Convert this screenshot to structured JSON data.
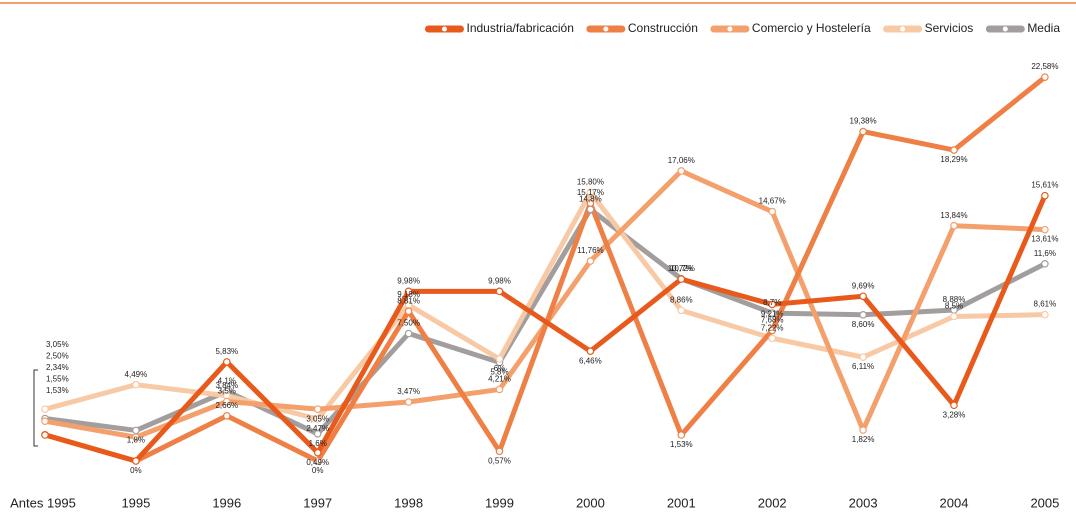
{
  "chart_data": {
    "type": "line",
    "categories": [
      "Antes 1995",
      "1995",
      "1996",
      "1997",
      "1998",
      "1999",
      "2000",
      "2001",
      "2002",
      "2003",
      "2004",
      "2005"
    ],
    "ylim": [
      0,
      25
    ],
    "legend": "top-right",
    "series": [
      {
        "name": "Industria/fabricación",
        "color": "#e85a1c",
        "values": [
          1.53,
          0,
          5.83,
          0.49,
          9.98,
          9.98,
          6.46,
          10.7,
          9.21,
          9.69,
          3.28,
          15.61
        ],
        "value_labels": [
          "1,53%",
          "0%",
          "5,83%",
          "0,49%",
          "9,98%",
          "9,98%",
          "6,46%",
          "10,7%",
          "9,21%",
          "9,69%",
          "3,28%",
          "15,61%"
        ]
      },
      {
        "name": "Construcción",
        "color": "#ee7f45",
        "values": [
          1.55,
          0,
          2.66,
          0,
          8.81,
          0.57,
          15.17,
          1.53,
          7.68,
          19.38,
          18.29,
          22.58
        ],
        "value_labels": [
          "1,55%",
          null,
          "2,66%",
          "0%",
          "8,81%",
          "0,57%",
          "15,17%",
          "1,53%",
          "7,68%",
          "19,38%",
          "18,29%",
          "22,58%"
        ]
      },
      {
        "name": "Comercio y Hostelería",
        "color": "#f3a06c",
        "values": [
          2.34,
          1.4,
          3.5,
          3.05,
          3.47,
          4.21,
          11.76,
          17.06,
          14.67,
          1.82,
          13.84,
          13.61
        ],
        "value_labels": [
          "2,34%",
          null,
          "3,5%",
          "3,05%",
          "3,47%",
          "4,21%",
          "11,76%",
          "17,06%",
          "14,67%",
          "1,82%",
          "13,84%",
          "13,61%"
        ]
      },
      {
        "name": "Servicios",
        "color": "#f8c9a5",
        "values": [
          3.05,
          4.49,
          3.84,
          2.47,
          9.18,
          6,
          15.8,
          8.86,
          7.22,
          6.11,
          8.5,
          8.61
        ],
        "value_labels": [
          "3,05%",
          "4,49%",
          "3,84%",
          "2,47%",
          "9,18%",
          "6%",
          "15,80%",
          "8,86%",
          "7,22%",
          "6,11%",
          "8,5%",
          "8,61%"
        ]
      },
      {
        "name": "Media",
        "color": "#a39e9e",
        "values": [
          2.5,
          1.8,
          4.1,
          1.6,
          7.5,
          5.8,
          14.8,
          10.72,
          8.7,
          8.6,
          8.88,
          11.6
        ],
        "value_labels": [
          "2,50%",
          "1,8%",
          "4,1%",
          "1,6%",
          "7,50%",
          "5,8%",
          "14,8%",
          "10,72%",
          "8,7%",
          "8,60%",
          "8,88%",
          "11,6%"
        ]
      }
    ]
  }
}
